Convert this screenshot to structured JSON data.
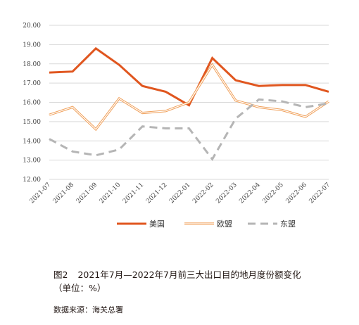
{
  "chart_data": {
    "type": "line",
    "title": "",
    "xlabel": "",
    "ylabel": "",
    "categories": [
      "2021-07",
      "2021-08",
      "2021-09",
      "2021-10",
      "2021-11",
      "2021-12",
      "2022-01",
      "2022-02",
      "2022-03",
      "2022-04",
      "2022-05",
      "2022-06",
      "2022-07"
    ],
    "yticks": [
      "12.00",
      "13.00",
      "14.00",
      "15.00",
      "16.00",
      "17.00",
      "18.00",
      "19.00",
      "20.00"
    ],
    "ylim": [
      12,
      20
    ],
    "grid": "horizontal",
    "legend_position": "bottom",
    "series": [
      {
        "name": "美国",
        "color": "#e0561f",
        "style": "solid-thick",
        "values": [
          17.55,
          17.6,
          18.8,
          17.95,
          16.85,
          16.55,
          15.85,
          18.3,
          17.15,
          16.85,
          16.9,
          16.9,
          16.55
        ]
      },
      {
        "name": "欧盟",
        "color": "#f0a15c",
        "style": "double-line",
        "values": [
          15.35,
          15.75,
          14.6,
          16.2,
          15.45,
          15.55,
          16.0,
          17.95,
          16.1,
          15.75,
          15.6,
          15.25,
          16.05
        ]
      },
      {
        "name": "东盟",
        "color": "#b5b5b5",
        "style": "dashed",
        "values": [
          14.1,
          13.45,
          13.25,
          13.55,
          14.75,
          14.65,
          14.65,
          13.05,
          15.15,
          16.15,
          16.05,
          15.75,
          15.95
        ]
      }
    ]
  },
  "caption": {
    "figure_number": "图2",
    "text": "2021年7月—2022年7月前三大出口目的地月度份额变化",
    "unit": "（单位：%）"
  },
  "source": "数据来源：海关总署"
}
